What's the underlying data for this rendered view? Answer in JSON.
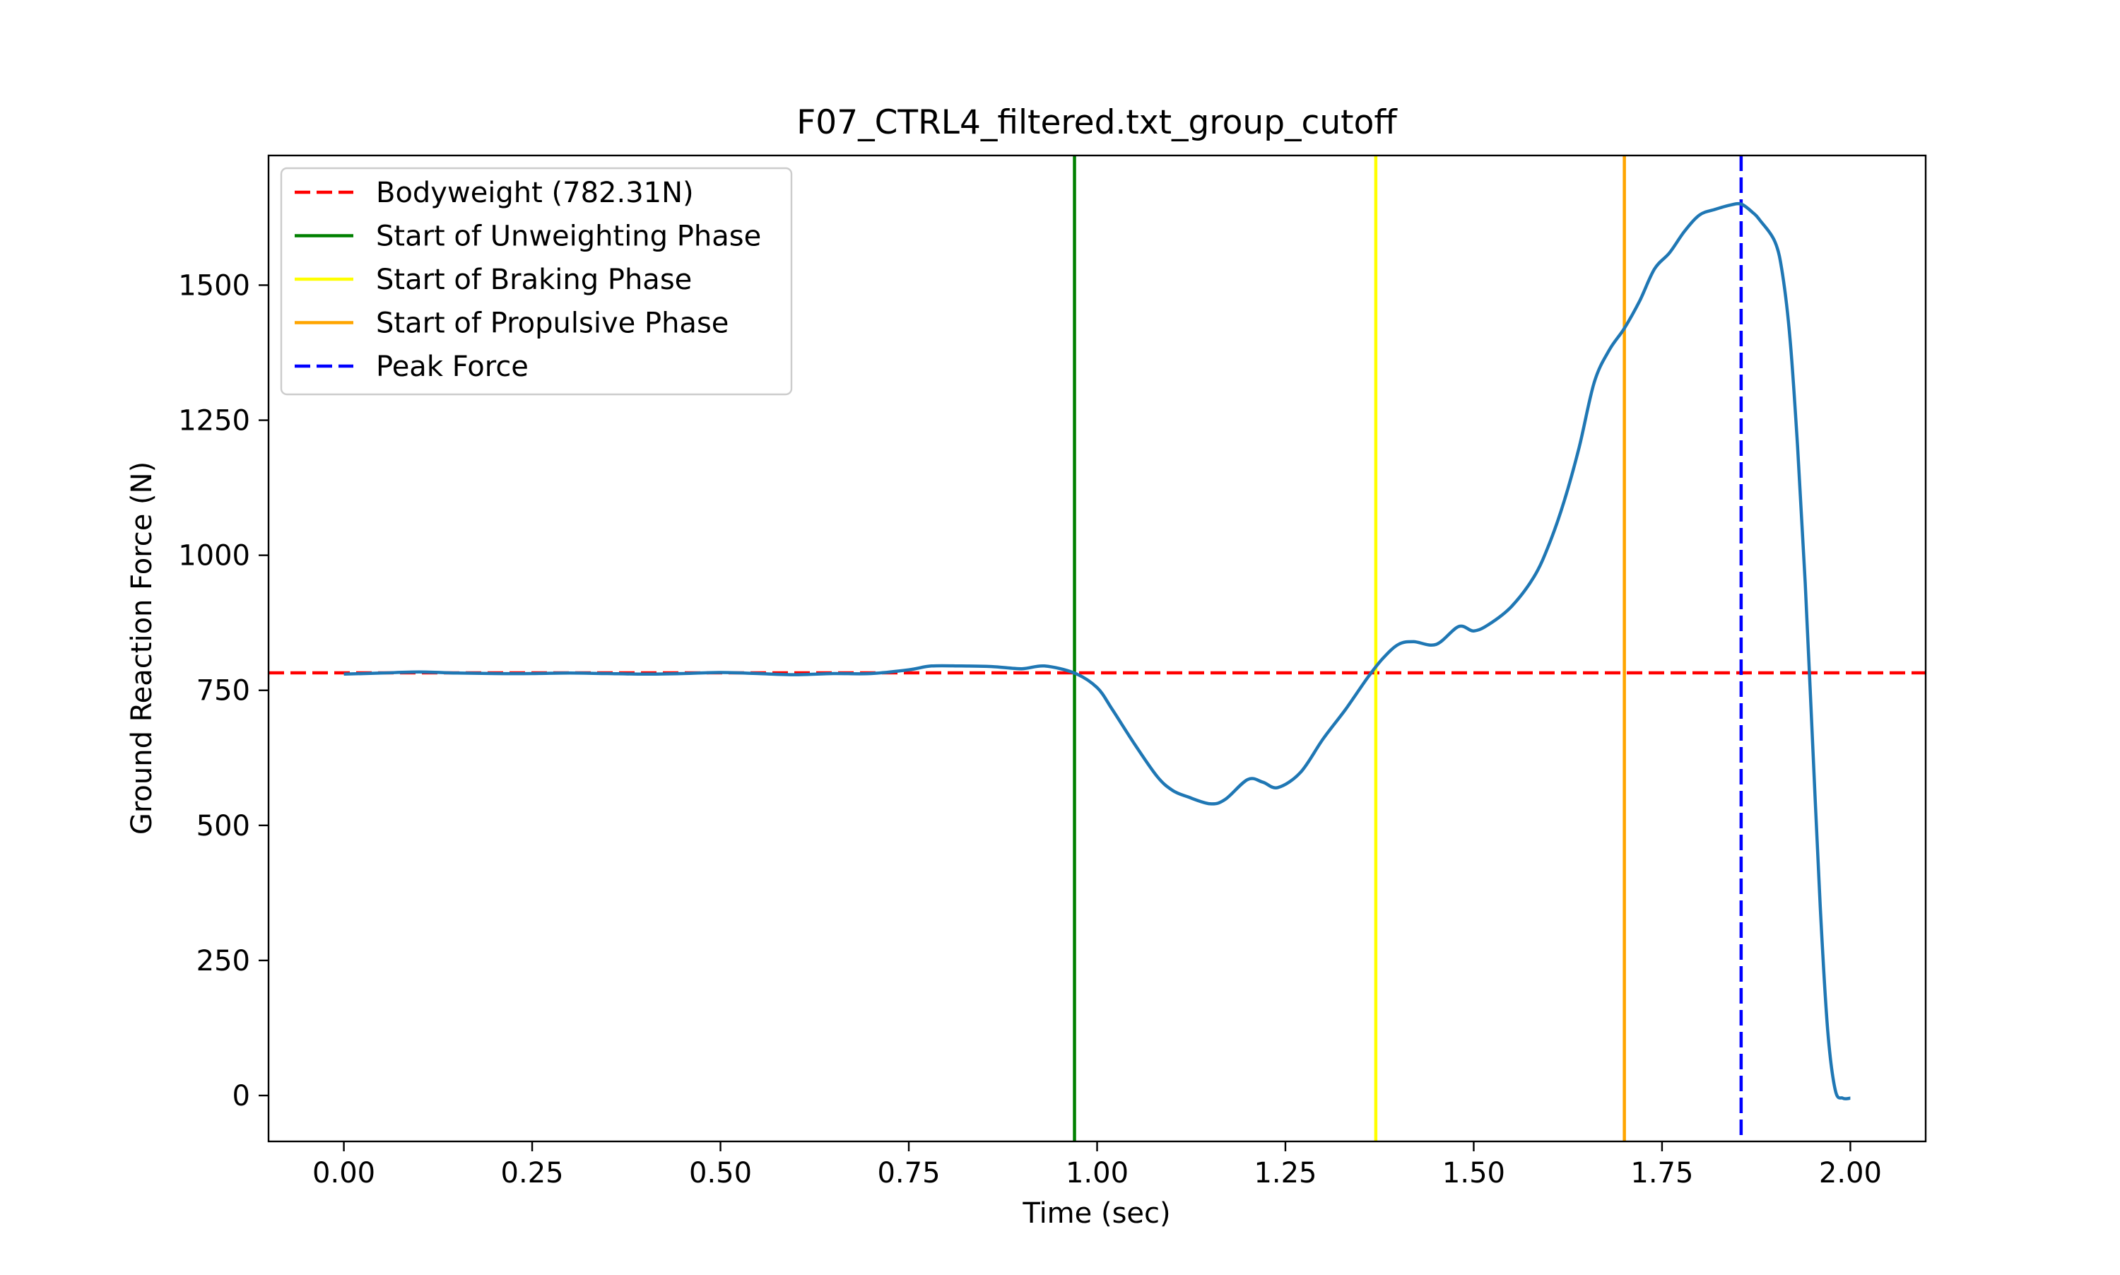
{
  "chart_data": {
    "type": "line",
    "title": "F07_CTRL4_filtered.txt_group_cutoff",
    "xlabel": "Time (sec)",
    "ylabel": "Ground Reaction Force (N)",
    "xlim": [
      -0.1,
      2.1
    ],
    "ylim": [
      -85,
      1740
    ],
    "xticks": [
      0.0,
      0.25,
      0.5,
      0.75,
      1.0,
      1.25,
      1.5,
      1.75,
      2.0
    ],
    "xtick_labels": [
      "0.00",
      "0.25",
      "0.50",
      "0.75",
      "1.00",
      "1.25",
      "1.50",
      "1.75",
      "2.00"
    ],
    "yticks": [
      0,
      250,
      500,
      750,
      1000,
      1250,
      1500
    ],
    "ytick_labels": [
      "0",
      "250",
      "500",
      "750",
      "1000",
      "1250",
      "1500"
    ],
    "grid": false,
    "legend_position": "top-left",
    "series": [
      {
        "color": "#1f77b4",
        "x": [
          0.0,
          0.05,
          0.1,
          0.15,
          0.2,
          0.25,
          0.3,
          0.35,
          0.4,
          0.45,
          0.5,
          0.55,
          0.6,
          0.65,
          0.7,
          0.75,
          0.78,
          0.82,
          0.86,
          0.9,
          0.93,
          0.97,
          1.0,
          1.02,
          1.05,
          1.08,
          1.1,
          1.12,
          1.15,
          1.17,
          1.2,
          1.22,
          1.24,
          1.27,
          1.3,
          1.33,
          1.36,
          1.38,
          1.4,
          1.42,
          1.45,
          1.48,
          1.5,
          1.52,
          1.55,
          1.58,
          1.6,
          1.62,
          1.64,
          1.66,
          1.68,
          1.7,
          1.72,
          1.74,
          1.76,
          1.78,
          1.8,
          1.82,
          1.84,
          1.855,
          1.87,
          1.88,
          1.9,
          1.91,
          1.92,
          1.93,
          1.94,
          1.95,
          1.96,
          1.97,
          1.98,
          1.99,
          2.0
        ],
        "y": [
          780,
          782,
          784,
          782,
          781,
          781,
          782,
          781,
          780,
          781,
          783,
          781,
          779,
          781,
          781,
          788,
          795,
          795,
          794,
          790,
          795,
          782,
          755,
          715,
          650,
          590,
          565,
          553,
          540,
          548,
          585,
          580,
          570,
          598,
          660,
          715,
          775,
          810,
          835,
          840,
          835,
          868,
          860,
          872,
          905,
          960,
          1020,
          1100,
          1200,
          1320,
          1380,
          1420,
          1470,
          1530,
          1560,
          1600,
          1630,
          1640,
          1648,
          1650,
          1635,
          1620,
          1580,
          1520,
          1400,
          1200,
          950,
          650,
          350,
          120,
          10,
          -5,
          -5
        ]
      }
    ],
    "annotations": [
      {
        "kind": "hline",
        "value": 782.31,
        "color": "#ff0000",
        "style": "dashed",
        "label": "Bodyweight (782.31N)"
      },
      {
        "kind": "vline",
        "value": 0.97,
        "color": "#008000",
        "style": "solid",
        "label": "Start of Unweighting Phase"
      },
      {
        "kind": "vline",
        "value": 1.37,
        "color": "#ffff00",
        "style": "solid",
        "label": "Start of Braking Phase"
      },
      {
        "kind": "vline",
        "value": 1.7,
        "color": "#ffa500",
        "style": "solid",
        "label": "Start of Propulsive Phase"
      },
      {
        "kind": "vline",
        "value": 1.855,
        "color": "#0000ff",
        "style": "dashed",
        "label": "Peak Force"
      }
    ]
  }
}
